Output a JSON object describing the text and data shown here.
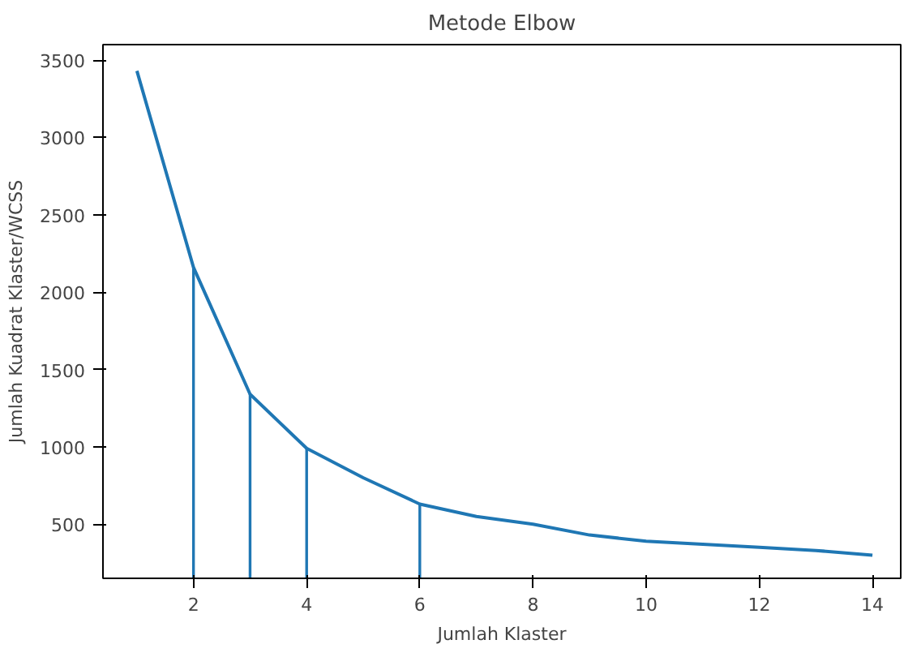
{
  "chart_data": {
    "type": "line",
    "title": "Metode Elbow",
    "xlabel": "Jumlah Klaster",
    "ylabel": "Jumlah Kuadrat Klaster/WCSS",
    "xlim": [
      0.4,
      14.5
    ],
    "ylim": [
      150,
      3600
    ],
    "xticks": [
      2,
      4,
      6,
      8,
      10,
      12,
      14
    ],
    "yticks": [
      500,
      1000,
      1500,
      2000,
      2500,
      3000,
      3500
    ],
    "grid": false,
    "series": [
      {
        "color": "#1f77b4",
        "x": [
          1,
          2,
          3,
          4,
          5,
          6,
          7,
          8,
          9,
          10,
          11,
          12,
          13,
          14
        ],
        "values": [
          3430,
          2160,
          1340,
          990,
          800,
          630,
          550,
          500,
          430,
          390,
          370,
          350,
          330,
          300
        ]
      },
      {
        "type": "bar",
        "color": "#1f77b4",
        "x": [
          2,
          3,
          4,
          6
        ],
        "values": [
          2160,
          1340,
          990,
          630
        ]
      }
    ]
  }
}
